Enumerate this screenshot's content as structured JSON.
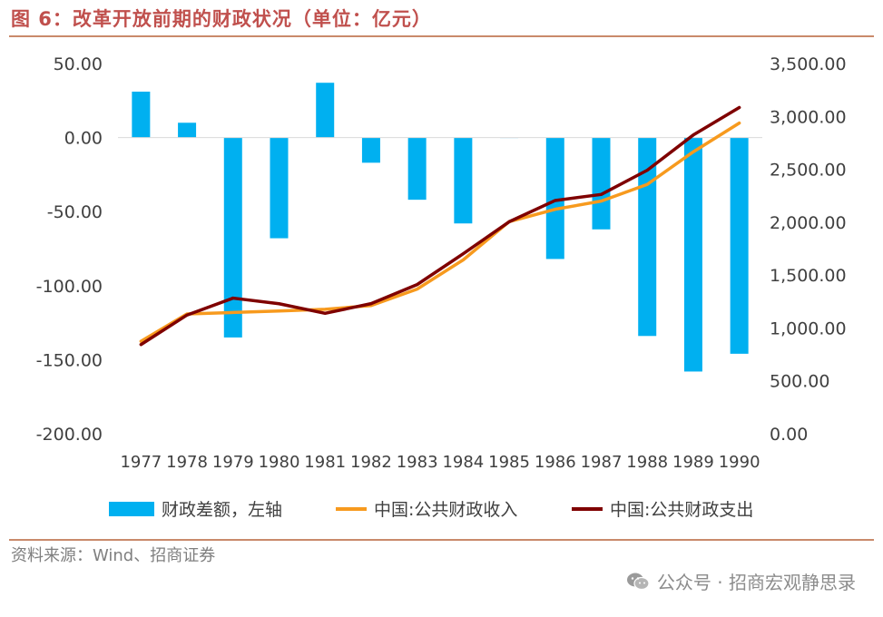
{
  "header": {
    "title": "图 6：改革开放前期的财政状况（单位：亿元）"
  },
  "footer": {
    "source": "资料来源：Wind、招商证券",
    "watermark": "公众号 · 招商宏观静思录",
    "watermark_icon": "wechat-icon"
  },
  "colors": {
    "bar": "#00b0f0",
    "income": "#f79a1e",
    "expense": "#7f0000",
    "title": "#c0504d"
  },
  "chart_data": {
    "type": "bar+line",
    "categories": [
      "1977",
      "1978",
      "1979",
      "1980",
      "1981",
      "1982",
      "1983",
      "1984",
      "1985",
      "1986",
      "1987",
      "1988",
      "1989",
      "1990"
    ],
    "left_axis": {
      "ticks": [
        "50.00",
        "0.00",
        "-50.00",
        "-100.00",
        "-150.00",
        "-200.00"
      ],
      "ylim": [
        -200,
        50
      ]
    },
    "right_axis": {
      "ticks": [
        "3,500.00",
        "3,000.00",
        "2,500.00",
        "2,000.00",
        "1,500.00",
        "1,000.00",
        "500.00",
        "0.00"
      ],
      "ylim": [
        0,
        3500
      ]
    },
    "series": [
      {
        "name": "财政差额，左轴",
        "kind": "bar",
        "axis": "left",
        "color": "#00b0f0",
        "values": [
          31,
          10,
          -135,
          -68,
          37,
          -17,
          -42,
          -58,
          0,
          -82,
          -62,
          -134,
          -158,
          -146
        ]
      },
      {
        "name": "中国:公共财政收入",
        "kind": "line",
        "axis": "right",
        "color": "#f79a1e",
        "values": [
          874,
          1132,
          1146,
          1160,
          1176,
          1212,
          1367,
          1643,
          2005,
          2122,
          2199,
          2357,
          2665,
          2937
        ]
      },
      {
        "name": "中国:公共财政支出",
        "kind": "line",
        "axis": "right",
        "color": "#7f0000",
        "values": [
          843,
          1122,
          1282,
          1229,
          1138,
          1230,
          1410,
          1701,
          2004,
          2205,
          2262,
          2491,
          2824,
          3084
        ]
      }
    ],
    "legend": {
      "position": "bottom"
    },
    "grid": false
  }
}
